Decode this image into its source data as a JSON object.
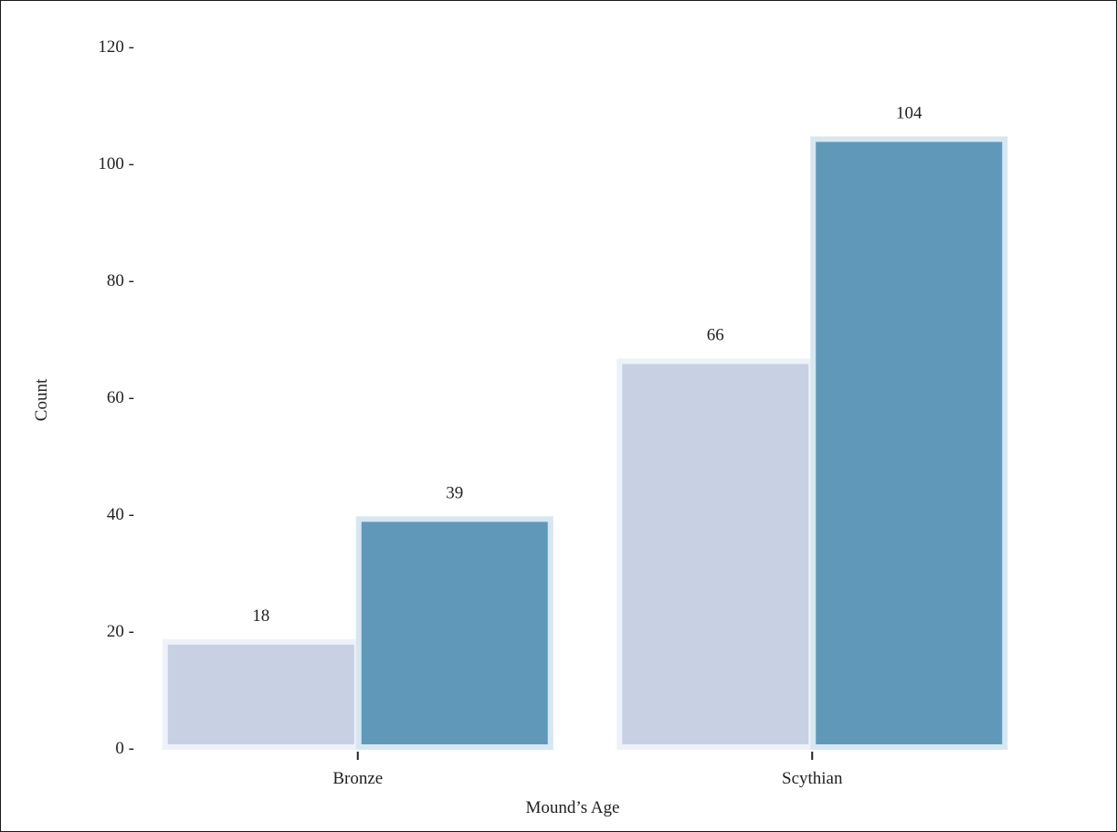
{
  "chart_data": {
    "type": "bar",
    "categories": [
      "Bronze",
      "Scythian"
    ],
    "series": [
      {
        "values": [
          18,
          66
        ],
        "color": "#c7d1e3",
        "border_color": "#eef2f8"
      },
      {
        "values": [
          39,
          104
        ],
        "color": "#6098b9",
        "border_color": "#d6e7f1"
      }
    ],
    "data_labels": [
      [
        "18",
        "66"
      ],
      [
        "39",
        "104"
      ]
    ],
    "title": "",
    "xlabel": "Mound’s Age",
    "ylabel": "Count",
    "ylim": [
      0,
      120
    ],
    "yticks": [
      0,
      20,
      40,
      60,
      80,
      100,
      120
    ],
    "ytick_labels": [
      "0 -",
      "20 -",
      "40 -",
      "60 -",
      "80 -",
      "100 -",
      "120 -"
    ],
    "grid": false,
    "legend": "none"
  }
}
